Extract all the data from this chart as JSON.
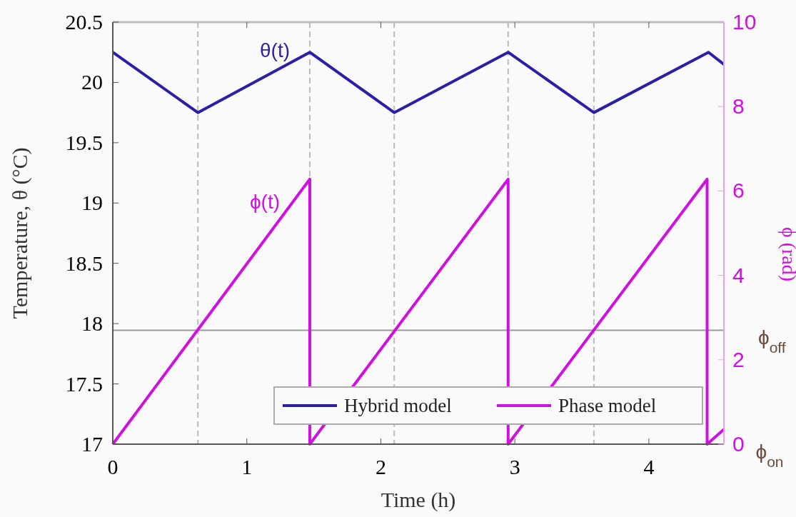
{
  "chart_data": {
    "type": "line",
    "xlabel": "Time (h)",
    "ylabel": "Temperature, θ (°C)",
    "y2label": "ϕ (rad)",
    "xlim": [
      0,
      4.56
    ],
    "xticks": [
      0,
      1,
      2,
      3,
      4
    ],
    "ylim": [
      17,
      20.5
    ],
    "yticks": [
      17,
      17.5,
      18,
      18.5,
      19,
      19.5,
      20,
      20.5
    ],
    "y2lim": [
      0,
      10
    ],
    "y2ticks": [
      0,
      2,
      4,
      6,
      8,
      10
    ],
    "grid": false,
    "legend": "bottom right",
    "line_style": "solid",
    "series": [
      {
        "name": "Hybrid model",
        "color": "#2a1fa6",
        "x": [
          0,
          0.635,
          1.47,
          2.1,
          2.95,
          3.59,
          4.445,
          4.56
        ],
        "values": [
          20.25,
          19.75,
          20.25,
          19.75,
          20.25,
          19.75,
          20.25,
          20.15
        ]
      },
      {
        "name": "Phase model",
        "color": "#d010e0",
        "axis": "y2",
        "x": [
          0,
          1.47,
          1.47,
          2.95,
          2.95,
          4.435,
          4.435,
          4.56
        ],
        "values": [
          0,
          6.28,
          0,
          6.28,
          0,
          6.28,
          0,
          0.35
        ]
      }
    ],
    "ref_lines": [
      {
        "axis": "y2",
        "value": 2.7,
        "label": "ϕ$_{off}$",
        "color": "#999999",
        "line_style": "solid"
      },
      {
        "axis": "x",
        "value": 0.635,
        "color": "#bbbbbb",
        "line_style": "dashed"
      },
      {
        "axis": "x",
        "value": 1.47,
        "color": "#bbbbbb",
        "line_style": "dashed"
      },
      {
        "axis": "x",
        "value": 2.1,
        "color": "#bbbbbb",
        "line_style": "dashed"
      },
      {
        "axis": "x",
        "value": 2.95,
        "color": "#bbbbbb",
        "line_style": "dashed"
      },
      {
        "axis": "x",
        "value": 3.59,
        "color": "#bbbbbb",
        "line_style": "dashed"
      }
    ],
    "annotations": [
      "θ(t)",
      "ϕ(t)",
      "ϕ$_{on}$"
    ]
  }
}
